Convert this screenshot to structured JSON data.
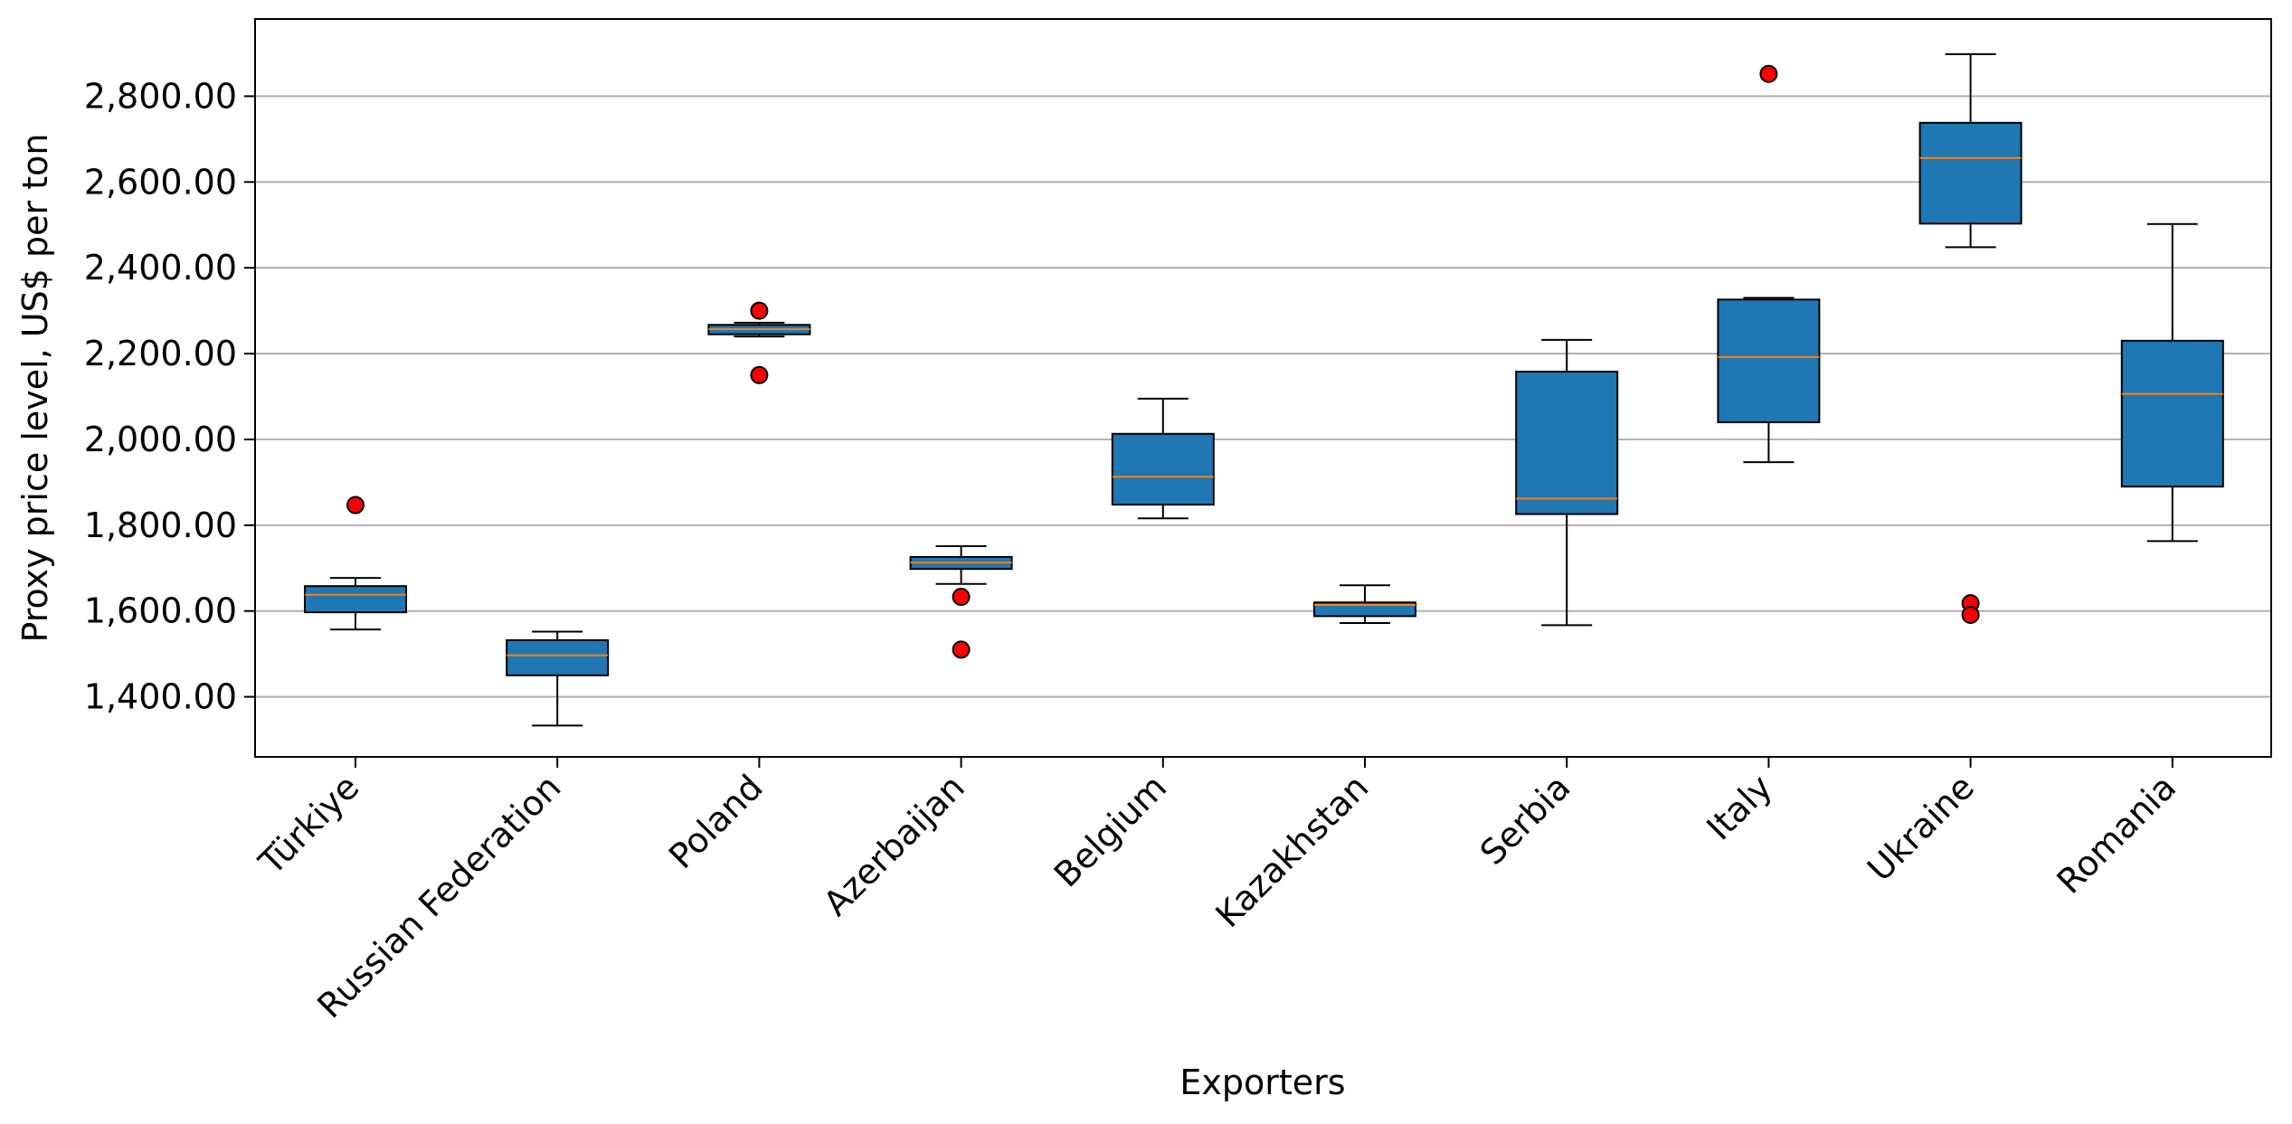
{
  "chart_data": {
    "type": "box",
    "title": "",
    "xlabel": "Exporters",
    "ylabel": "Proxy price level, US$ per ton",
    "ylim": [
      1260,
      2980
    ],
    "yticks": [
      1400,
      1600,
      1800,
      2000,
      2200,
      2400,
      2600,
      2800
    ],
    "ytick_labels": [
      "1,400.00",
      "1,600.00",
      "1,800.00",
      "2,000.00",
      "2,200.00",
      "2,400.00",
      "2,600.00",
      "2,800.00"
    ],
    "grid": "horizontal",
    "categories": [
      "Türkiye",
      "Russian Federation",
      "Poland",
      "Azerbaijan",
      "Belgium",
      "Kazakhstan",
      "Serbia",
      "Italy",
      "Ukraine",
      "Romania"
    ],
    "boxes": [
      {
        "whisker_low": 1557,
        "q1": 1597,
        "median": 1638,
        "q3": 1658,
        "whisker_high": 1677,
        "outliers": [
          1847
        ]
      },
      {
        "whisker_low": 1333,
        "q1": 1450,
        "median": 1497,
        "q3": 1532,
        "whisker_high": 1552,
        "outliers": []
      },
      {
        "whisker_low": 2240,
        "q1": 2245,
        "median": 2257,
        "q3": 2267,
        "whisker_high": 2272,
        "outliers": [
          2300,
          2150
        ]
      },
      {
        "whisker_low": 1663,
        "q1": 1698,
        "median": 1713,
        "q3": 1726,
        "whisker_high": 1751,
        "outliers": [
          1633,
          1510
        ]
      },
      {
        "whisker_low": 1816,
        "q1": 1848,
        "median": 1913,
        "q3": 2013,
        "whisker_high": 2095,
        "outliers": []
      },
      {
        "whisker_low": 1572,
        "q1": 1588,
        "median": 1614,
        "q3": 1620,
        "whisker_high": 1660,
        "outliers": []
      },
      {
        "whisker_low": 1567,
        "q1": 1826,
        "median": 1862,
        "q3": 2158,
        "whisker_high": 2232,
        "outliers": []
      },
      {
        "whisker_low": 1947,
        "q1": 2040,
        "median": 2192,
        "q3": 2326,
        "whisker_high": 2330,
        "outliers": [
          2852
        ]
      },
      {
        "whisker_low": 2448,
        "q1": 2503,
        "median": 2656,
        "q3": 2738,
        "whisker_high": 2898,
        "outliers": [
          1618,
          1591
        ]
      },
      {
        "whisker_low": 1763,
        "q1": 1890,
        "median": 2106,
        "q3": 2230,
        "whisker_high": 2502,
        "outliers": []
      }
    ],
    "colors": {
      "box_fill": "#1f77b4",
      "median": "#ff7f0e",
      "outlier_fill": "#ff0000",
      "grid": "#b0b0b0"
    }
  }
}
